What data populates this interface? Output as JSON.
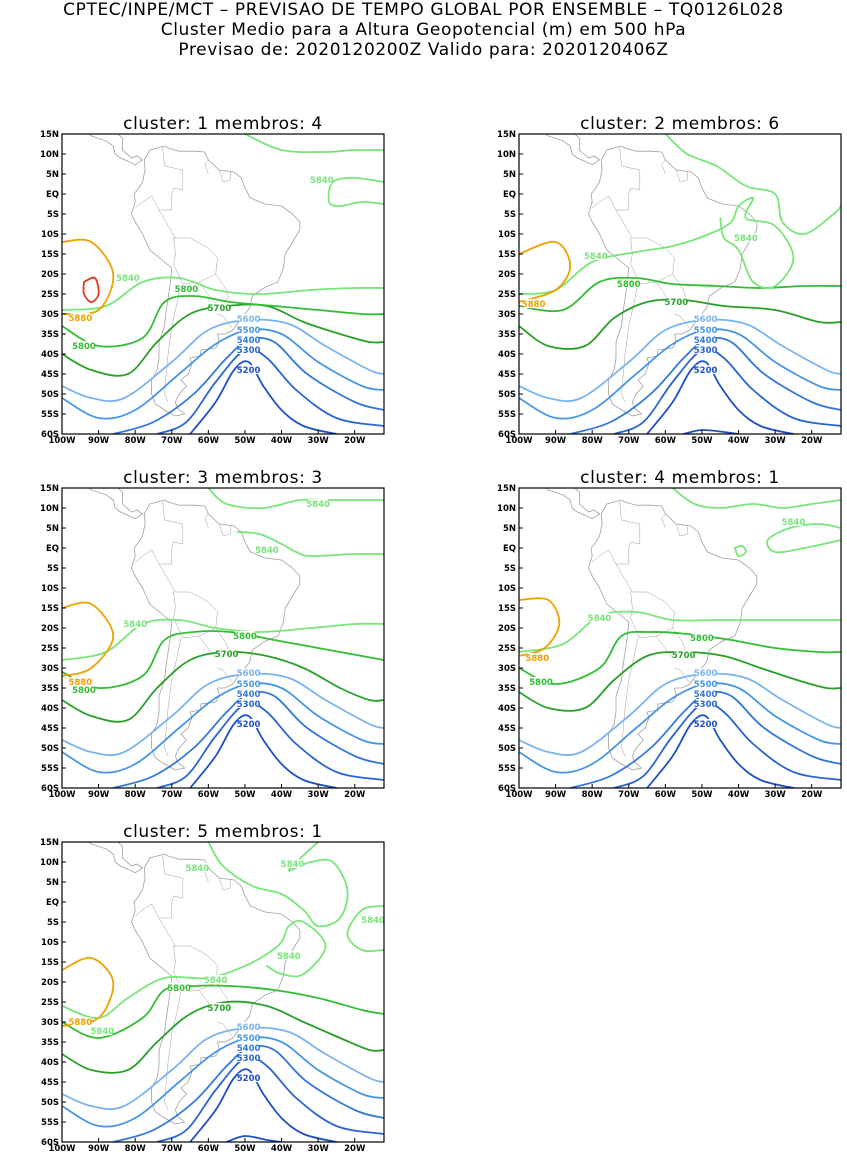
{
  "header": {
    "line1": "CPTEC/INPE/MCT – PREVISAO DE TEMPO GLOBAL POR ENSEMBLE – TQ0126L028",
    "line2": "Cluster Medio para a Altura Geopotencial (m) em 500 hPa",
    "line3": "Previsao de: 2020120200Z    Valido para: 2020120406Z"
  },
  "axes": {
    "lat_labels": [
      "15N",
      "10N",
      "5N",
      "EQ",
      "5S",
      "10S",
      "15S",
      "20S",
      "25S",
      "30S",
      "35S",
      "40S",
      "45S",
      "50S",
      "55S",
      "60S"
    ],
    "lon_labels": [
      "100W",
      "90W",
      "80W",
      "70W",
      "60W",
      "50W",
      "40W",
      "30W",
      "20W"
    ]
  },
  "colors": {
    "c5200": "#1e50c8",
    "c5300": "#2864d2",
    "c5400": "#3278dc",
    "c5500": "#4696e6",
    "c5600": "#78b4f0",
    "c5700": "#28a028",
    "c5800": "#32be32",
    "c5840": "#78e678",
    "c5880": "#f0a000",
    "c5920": "#e03c1e",
    "coast": "#a0a0a0"
  },
  "panels": [
    {
      "title": "cluster: 1   membros: 4",
      "labels": [
        "5840",
        "5840",
        "5800",
        "5880",
        "5800",
        "5700",
        "5600",
        "5500",
        "5400",
        "5300",
        "5200"
      ]
    },
    {
      "title": "cluster: 2   membros: 6",
      "labels": [
        "5840",
        "5840",
        "5880",
        "5800",
        "5700",
        "5600",
        "5500",
        "5400",
        "5300",
        "5200"
      ]
    },
    {
      "title": "cluster: 3   membros: 3",
      "labels": [
        "5840",
        "5840",
        "5840",
        "5880",
        "5800",
        "5800",
        "5700",
        "5600",
        "5500",
        "5400",
        "5300",
        "5200"
      ]
    },
    {
      "title": "cluster: 4   membros: 1",
      "labels": [
        "5840",
        "5840",
        "5880",
        "5800",
        "5800",
        "5700",
        "5600",
        "5500",
        "5400",
        "5300",
        "5200"
      ]
    },
    {
      "title": "cluster: 5   membros: 1",
      "labels": [
        "5840",
        "5840",
        "5840",
        "5840",
        "5840",
        "5880",
        "5800",
        "5840",
        "5700",
        "5600",
        "5500",
        "5400",
        "5300",
        "5200"
      ]
    }
  ]
}
